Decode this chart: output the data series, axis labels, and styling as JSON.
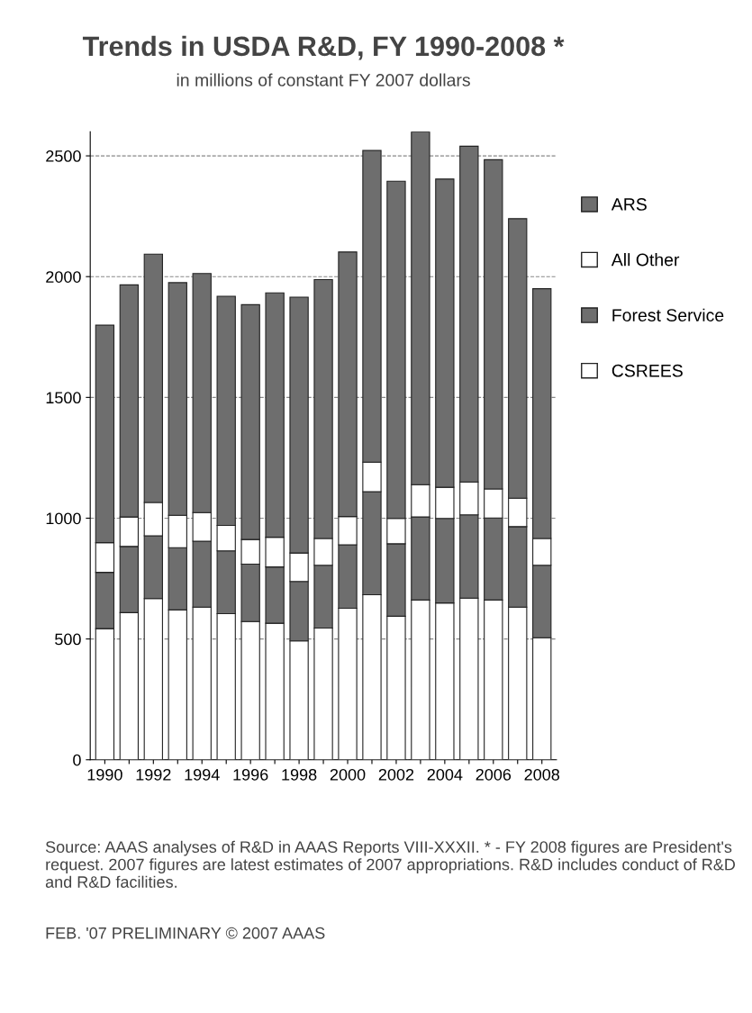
{
  "chart_data": {
    "type": "bar",
    "stacked": true,
    "title": "Trends in USDA R&D, FY 1990-2008 *",
    "subtitle": "in millions of constant FY 2007 dollars",
    "categories": [
      "1990",
      null,
      "1992",
      null,
      "1994",
      null,
      "1996",
      null,
      "1998",
      null,
      "2000",
      null,
      "2002",
      null,
      "2004",
      null,
      "2006",
      null,
      "2008"
    ],
    "series": [
      {
        "name": "CSREES",
        "color": "#ffffff",
        "values": [
          543,
          609,
          667,
          620,
          632,
          605,
          572,
          565,
          492,
          545,
          627,
          683,
          594,
          661,
          649,
          669,
          661,
          632,
          505
        ]
      },
      {
        "name": "Forest Service",
        "color": "#6e6e6e",
        "values": [
          233,
          274,
          260,
          258,
          273,
          260,
          238,
          233,
          246,
          260,
          263,
          427,
          300,
          344,
          350,
          345,
          340,
          333,
          300
        ]
      },
      {
        "name": "All Other",
        "color": "#ffffff",
        "values": [
          123,
          122,
          138,
          134,
          118,
          105,
          102,
          123,
          118,
          111,
          117,
          122,
          105,
          134,
          129,
          136,
          120,
          118,
          111
        ]
      },
      {
        "name": "ARS",
        "color": "#6e6e6e",
        "values": [
          900,
          961,
          1028,
          963,
          990,
          949,
          972,
          1012,
          1059,
          1072,
          1095,
          1290,
          1396,
          1460,
          1276,
          1390,
          1363,
          1157,
          1034
        ]
      }
    ],
    "ylim": [
      0,
      2600
    ],
    "yticks": [
      0,
      500,
      1000,
      1500,
      2000,
      2500
    ],
    "grid": "y",
    "legend": "right",
    "annotations": [
      "Source: AAAS analyses of R&D in AAAS Reports VIII-XXXII. * - FY 2008 figures are President's request. 2007 figures are latest estimates of 2007 appropriations. R&D includes conduct of R&D and R&D facilities.",
      "FEB. '07 PRELIMINARY © 2007 AAAS"
    ]
  }
}
